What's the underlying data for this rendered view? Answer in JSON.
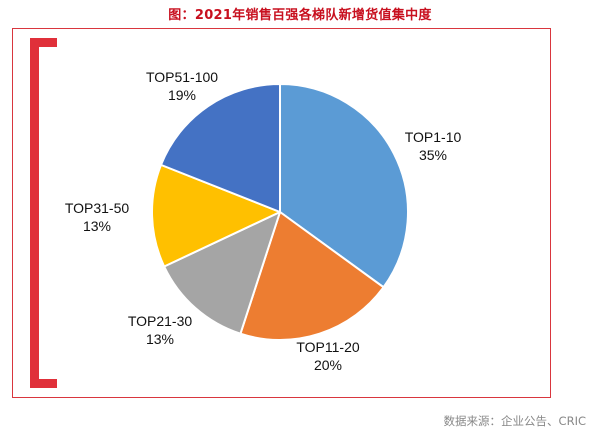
{
  "title": "图：2021年销售百强各梯队新增货值集中度",
  "source": "数据来源：企业公告、CRIC",
  "chart_data": {
    "type": "pie",
    "title": "图：2021年销售百强各梯队新增货值集中度",
    "slices": [
      {
        "label": "TOP1-10",
        "value": 35,
        "display": "35%",
        "color": "#5b9bd5"
      },
      {
        "label": "TOP11-20",
        "value": 20,
        "display": "20%",
        "color": "#ed7d31"
      },
      {
        "label": "TOP21-30",
        "value": 13,
        "display": "13%",
        "color": "#a5a5a5"
      },
      {
        "label": "TOP31-50",
        "value": 13,
        "display": "13%",
        "color": "#ffc000"
      },
      {
        "label": "TOP51-100",
        "value": 19,
        "display": "19%",
        "color": "#4472c4"
      }
    ],
    "start_angle_deg": 0,
    "direction": "clockwise",
    "legend": "none"
  }
}
